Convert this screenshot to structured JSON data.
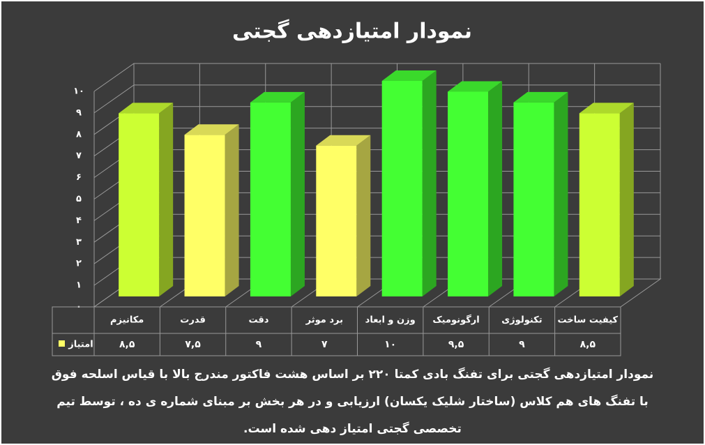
{
  "chart_data": {
    "type": "bar3d",
    "title": "نمودار امتیازدهی گجتی",
    "categories": [
      "مکانیزم",
      "قدرت",
      "دقت",
      "برد موثر",
      "وزن و ابعاد",
      "ارگونومیک",
      "تکنولوژی",
      "کیفیت ساخت"
    ],
    "series": [
      {
        "name": "امتیاز",
        "color": "#ffff66",
        "values": [
          8.5,
          7.5,
          9,
          7,
          10,
          9.5,
          9,
          8.5
        ],
        "value_labels": [
          "۸,۵",
          "۷,۵",
          "۹",
          "۷",
          "۱۰",
          "۹,۵",
          "۹",
          "۸,۵"
        ],
        "colors": [
          "#ccff33",
          "#ffff66",
          "#44ff33",
          "#ffff66",
          "#44ff33",
          "#44ff33",
          "#44ff33",
          "#ccff33"
        ]
      }
    ],
    "ylim": [
      0,
      10
    ],
    "yticks": [
      {
        "value": 0,
        "label": "۰"
      },
      {
        "value": 1,
        "label": "۱"
      },
      {
        "value": 2,
        "label": "۲"
      },
      {
        "value": 3,
        "label": "۳"
      },
      {
        "value": 4,
        "label": "۴"
      },
      {
        "value": 5,
        "label": "۵"
      },
      {
        "value": 6,
        "label": "۶"
      },
      {
        "value": 7,
        "label": "۷"
      },
      {
        "value": 8,
        "label": "۸"
      },
      {
        "value": 9,
        "label": "۹"
      },
      {
        "value": 10,
        "label": "۱۰"
      }
    ],
    "grid": true,
    "caption": [
      "نمودار امتیازدهی گجتی برای تفنگ بادی کمتا ۲۲۰ بر اساس هشت فاکتور مندرج بالا با قیاس اسلحه فوق",
      "با تفنگ های هم کلاس (ساختار شلیک یکسان) ارزیابی و در هر بخش بر مبنای شماره ی ده ، توسط تیم",
      "تخصصی گجتی امتیاز دهی شده است."
    ]
  }
}
